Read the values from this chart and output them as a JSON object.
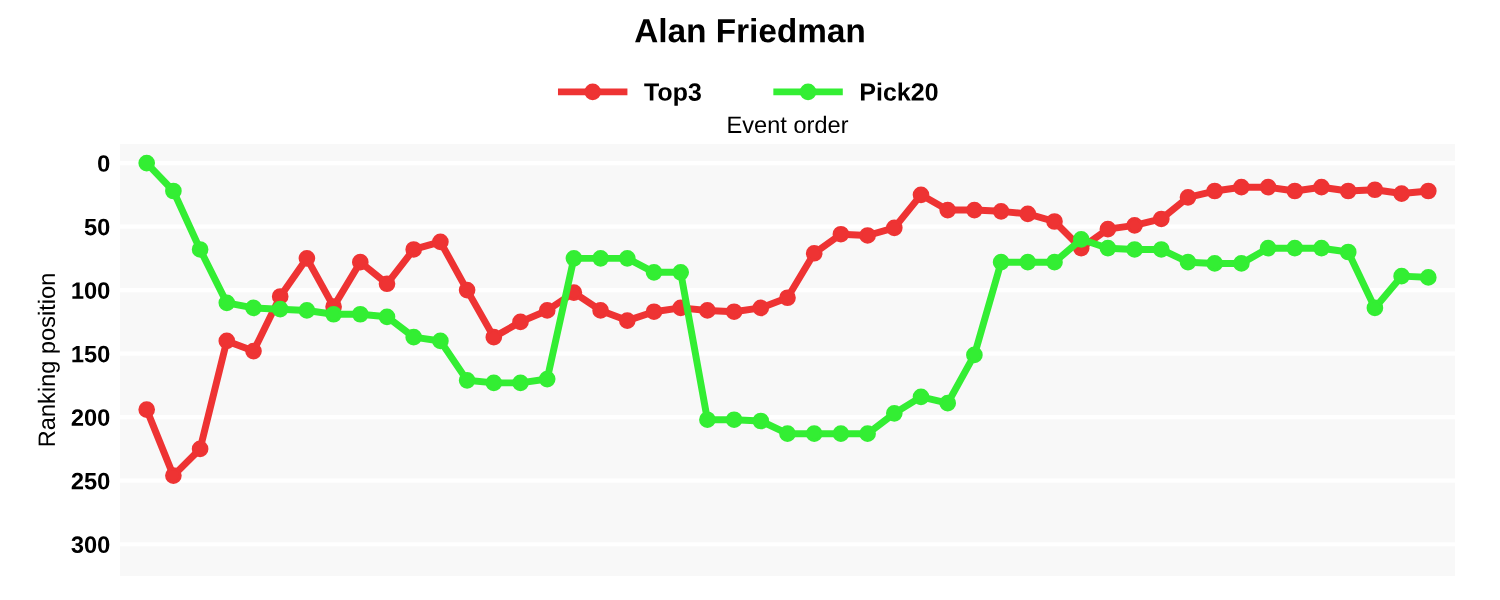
{
  "chart_data": {
    "type": "line",
    "title": "Alan Friedman",
    "xlabel": "Event order",
    "ylabel": "Ranking position",
    "categories": [
      null,
      null,
      null,
      null,
      null,
      null,
      null,
      null,
      null,
      null,
      null,
      null,
      null,
      null,
      null,
      null,
      null,
      null,
      null,
      null,
      null,
      null,
      null,
      null,
      null,
      null,
      null,
      null,
      null,
      null,
      null,
      null,
      null,
      null,
      null,
      null,
      null,
      null,
      null,
      null,
      null,
      null,
      null,
      null,
      null,
      null,
      null,
      null,
      null
    ],
    "series": [
      {
        "name": "Top3",
        "color": "#ee3333",
        "values": [
          194,
          246,
          225,
          140,
          148,
          105,
          75,
          113,
          78,
          95,
          68,
          62,
          100,
          137,
          125,
          116,
          102,
          116,
          124,
          117,
          114,
          116,
          117,
          114,
          106,
          71,
          56,
          57,
          51,
          25,
          37,
          37,
          38,
          40,
          46,
          67,
          52,
          49,
          44,
          27,
          22,
          19,
          19,
          22,
          19,
          22,
          21,
          24,
          22
        ]
      },
      {
        "name": "Pick20",
        "color": "#33ee33",
        "values": [
          0,
          22,
          68,
          110,
          114,
          115,
          116,
          119,
          119,
          121,
          137,
          140,
          171,
          173,
          173,
          170,
          75,
          75,
          75,
          86,
          86,
          202,
          202,
          203,
          213,
          213,
          213,
          213,
          197,
          184,
          189,
          151,
          78,
          78,
          78,
          60,
          67,
          68,
          68,
          78,
          79,
          79,
          67,
          67,
          67,
          70,
          114,
          89,
          90
        ]
      }
    ],
    "ylim": [
      325,
      -15
    ],
    "yticks": [
      0,
      50,
      100,
      150,
      200,
      250,
      300
    ],
    "grid": "y",
    "legend": "top",
    "marker": "circle",
    "line_style": "solid",
    "tick_labels": "y"
  }
}
